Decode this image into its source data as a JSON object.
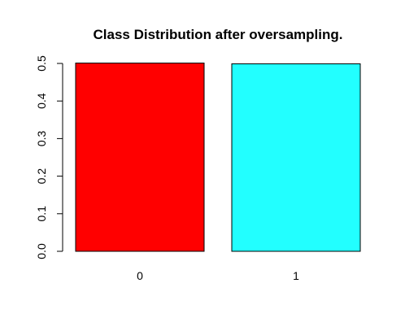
{
  "chart_data": {
    "type": "bar",
    "title": "Class Distribution after oversampling.",
    "xlabel": "",
    "ylabel": "",
    "categories": [
      "0",
      "1"
    ],
    "values": [
      0.501,
      0.499
    ],
    "colors": [
      "#ff0000",
      "#22ffff"
    ],
    "ylim": [
      0,
      0.5
    ],
    "yticks": [
      0.0,
      0.1,
      0.2,
      0.3,
      0.4,
      0.5
    ],
    "ytick_labels": [
      "0.0",
      "0.1",
      "0.2",
      "0.3",
      "0.4",
      "0.5"
    ],
    "grid": false,
    "legend": "none"
  }
}
